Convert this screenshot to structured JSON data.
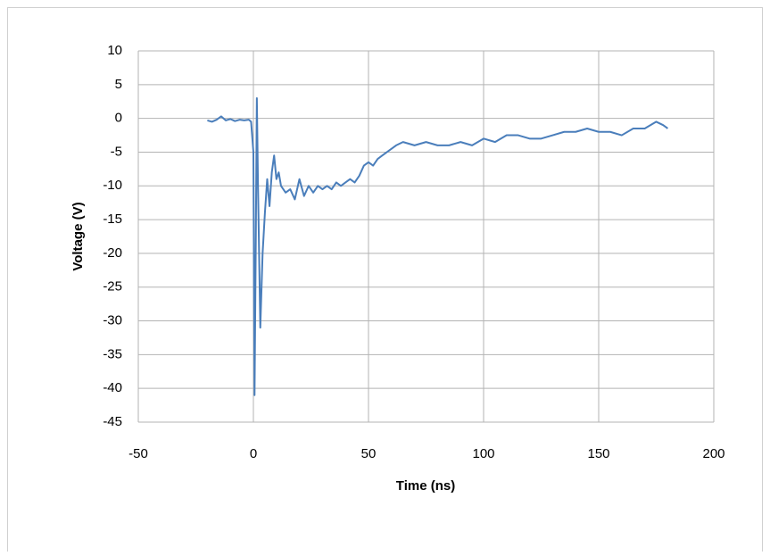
{
  "chart_data": {
    "type": "line",
    "xlabel": "Time (ns)",
    "ylabel": "Voltage (V)",
    "x": [
      -20,
      -18,
      -16,
      -14,
      -12,
      -10,
      -8,
      -6,
      -4,
      -2,
      -1,
      0,
      0.5,
      1,
      1.5,
      2,
      3,
      4,
      5,
      6,
      7,
      8,
      9,
      10,
      11,
      12,
      14,
      16,
      18,
      20,
      22,
      24,
      26,
      28,
      30,
      32,
      34,
      36,
      38,
      40,
      42,
      44,
      46,
      48,
      50,
      52,
      54,
      56,
      58,
      60,
      62,
      65,
      70,
      75,
      80,
      85,
      90,
      95,
      100,
      105,
      110,
      115,
      120,
      125,
      130,
      135,
      140,
      145,
      150,
      155,
      160,
      165,
      170,
      175,
      178,
      180
    ],
    "values": [
      -0.3,
      -0.5,
      -0.2,
      0.3,
      -0.3,
      -0.1,
      -0.4,
      -0.2,
      -0.3,
      -0.2,
      -0.5,
      -5,
      -41,
      -20,
      3,
      -10,
      -31,
      -20,
      -14,
      -9,
      -13,
      -8,
      -5.5,
      -9,
      -8,
      -10,
      -11,
      -10.5,
      -12,
      -9,
      -11.5,
      -10,
      -11,
      -10,
      -10.5,
      -10,
      -10.5,
      -9.5,
      -10,
      -9.5,
      -9,
      -9.5,
      -8.5,
      -7,
      -6.5,
      -7,
      -6,
      -5.5,
      -5,
      -4.5,
      -4,
      -3.5,
      -4,
      -3.5,
      -4,
      -4,
      -3.5,
      -4,
      -3,
      -3.5,
      -2.5,
      -2.5,
      -3,
      -3,
      -2.5,
      -2,
      -2,
      -1.5,
      -2,
      -2,
      -2.5,
      -1.5,
      -1.5,
      -0.5,
      -1,
      -1.5
    ],
    "color": "#4a7ebb",
    "xlim": [
      -50,
      200
    ],
    "xticks": [
      -50,
      0,
      50,
      100,
      150,
      200
    ],
    "ylim": [
      -45,
      10
    ],
    "yticks": [
      -45,
      -40,
      -35,
      -30,
      -25,
      -20,
      -15,
      -10,
      -5,
      0,
      5,
      10
    ],
    "grid": true
  }
}
